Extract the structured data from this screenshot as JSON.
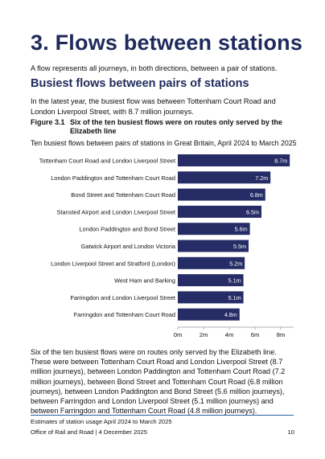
{
  "heading": "3.  Flows between stations",
  "intro": "A flow represents all journeys, in both directions, between a pair of stations.",
  "subheading": "Busiest flows between pairs of stations",
  "paragraph1": "In the latest year, the busiest flow was between Tottenham Court Road and London Liverpool Street, with 8.7 million journeys.",
  "figure": {
    "number": "Figure 3.1",
    "title": "Six of the ten busiest flows were on routes only served by the Elizabeth line"
  },
  "chart_data": {
    "type": "bar",
    "orientation": "horizontal",
    "title": "Ten busiest flows between pairs of stations in Great Britain, April 2024 to March 2025",
    "categories": [
      "Tottenham Court Road and London Liverpool Street",
      "London Paddington and Tottenham Court Road",
      "Bond Street and Tottenham Court Road",
      "Stansted Airport and London Liverpool Street",
      "London Paddington and Bond Street",
      "Gatwick Airport and London Victoria",
      "London Liverpool Street and Stratford (London)",
      "West Ham and Barking",
      "Farringdon and London Liverpool Street",
      "Farringdon and Tottenham Court Road"
    ],
    "values": [
      8.7,
      7.2,
      6.8,
      6.5,
      5.6,
      5.5,
      5.2,
      5.1,
      5.1,
      4.8
    ],
    "data_labels": [
      "8.7m",
      "7.2m",
      "6.8m",
      "6.5m",
      "5.6m",
      "5.5m",
      "5.2m",
      "5.1m",
      "5.1m",
      "4.8m"
    ],
    "xlim": [
      0,
      9
    ],
    "xticks": [
      0,
      2,
      4,
      6,
      8
    ],
    "xtick_labels": [
      "0m",
      "2m",
      "4m",
      "6m",
      "8m"
    ],
    "xlabel": "",
    "ylabel": "",
    "grid": false,
    "legend": "none",
    "bar_color": "#262d66",
    "label_color": "#ffffff"
  },
  "paragraph2": "Six of the ten busiest flows were on routes only served by the Elizabeth line. These were between Tottenham Court Road and London Liverpool Street (8.7 million journeys), between London Paddington and Tottenham Court Road (7.2 million journeys), between Bond Street and Tottenham Court Road (6.8 million journeys), between London Paddington and Bond Street (5.6 million journeys), between Farringdon and London Liverpool Street (5.1 million journeys) and between Farringdon and Tottenham Court Road (4.8 million journeys).",
  "footer": {
    "line1": "Estimates of station usage April 2024 to March 2025",
    "line2": "Office of Rail and Road | 4 December 2025",
    "page_number": "10"
  },
  "colors": {
    "heading": "#1f2a5c",
    "rule": "#2b5fa0"
  }
}
